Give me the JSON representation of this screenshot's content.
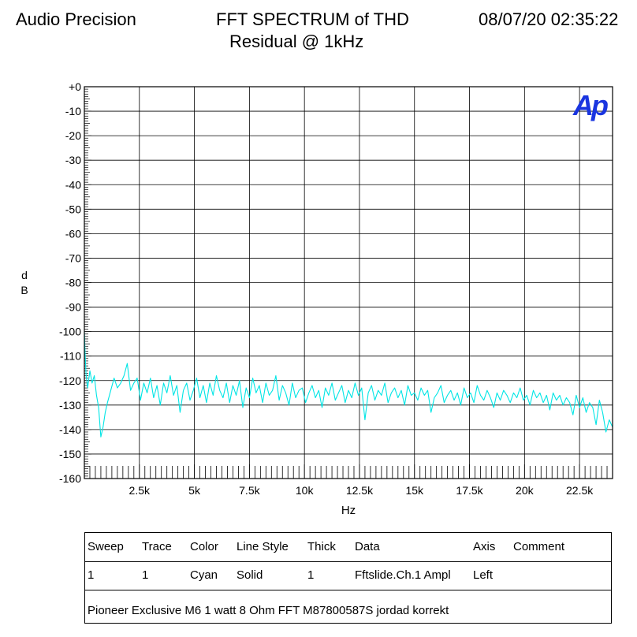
{
  "header": {
    "brand": "Audio Precision",
    "title_line1": "FFT SPECTRUM of THD",
    "title_line2": "Residual @ 1kHz",
    "timestamp": "08/07/20 02:35:22"
  },
  "logo": {
    "text": "Ap",
    "color": "#1a35e0"
  },
  "chart_data": {
    "type": "line",
    "title": "FFT SPECTRUM of THD Residual @ 1kHz",
    "xlabel": "Hz",
    "ylabel_chars": [
      "d",
      "B"
    ],
    "xlim": [
      0,
      24000
    ],
    "ylim": [
      -160,
      0
    ],
    "grid": true,
    "yticks": [
      {
        "value": 0,
        "label": "+0"
      },
      {
        "value": -10,
        "label": "-10"
      },
      {
        "value": -20,
        "label": "-20"
      },
      {
        "value": -30,
        "label": "-30"
      },
      {
        "value": -40,
        "label": "-40"
      },
      {
        "value": -50,
        "label": "-50"
      },
      {
        "value": -60,
        "label": "-60"
      },
      {
        "value": -70,
        "label": "-70"
      },
      {
        "value": -80,
        "label": "-80"
      },
      {
        "value": -90,
        "label": "-90"
      },
      {
        "value": -100,
        "label": "-100"
      },
      {
        "value": -110,
        "label": "-110"
      },
      {
        "value": -120,
        "label": "-120"
      },
      {
        "value": -130,
        "label": "-130"
      },
      {
        "value": -140,
        "label": "-140"
      },
      {
        "value": -150,
        "label": "-150"
      },
      {
        "value": -160,
        "label": "-160"
      }
    ],
    "xticks": [
      {
        "value": 2500,
        "label": "2.5k"
      },
      {
        "value": 5000,
        "label": "5k"
      },
      {
        "value": 7500,
        "label": "7.5k"
      },
      {
        "value": 10000,
        "label": "10k"
      },
      {
        "value": 12500,
        "label": "12.5k"
      },
      {
        "value": 15000,
        "label": "15k"
      },
      {
        "value": 17500,
        "label": "17.5k"
      },
      {
        "value": 20000,
        "label": "20k"
      },
      {
        "value": 22500,
        "label": "22.5k"
      }
    ],
    "series": [
      {
        "name": "Fftslide.Ch.1 Ampl",
        "color": "#00e5e5",
        "x": [
          0,
          40,
          80,
          150,
          250,
          350,
          450,
          550,
          650,
          750,
          850,
          950,
          1050,
          1200,
          1350,
          1500,
          1650,
          1800,
          1950,
          2100,
          2250,
          2400,
          2550,
          2700,
          2850,
          3000,
          3150,
          3300,
          3450,
          3600,
          3750,
          3900,
          4050,
          4200,
          4350,
          4500,
          4650,
          4800,
          4950,
          5100,
          5250,
          5400,
          5550,
          5700,
          5850,
          6000,
          6150,
          6300,
          6450,
          6600,
          6750,
          6900,
          7050,
          7200,
          7350,
          7500,
          7650,
          7800,
          7950,
          8100,
          8250,
          8400,
          8550,
          8700,
          8850,
          9000,
          9150,
          9300,
          9450,
          9600,
          9750,
          9900,
          10050,
          10200,
          10350,
          10500,
          10650,
          10800,
          10950,
          11100,
          11250,
          11400,
          11550,
          11700,
          11850,
          12000,
          12150,
          12300,
          12450,
          12600,
          12750,
          12900,
          13050,
          13200,
          13350,
          13500,
          13650,
          13800,
          13950,
          14100,
          14250,
          14400,
          14550,
          14700,
          14850,
          15000,
          15150,
          15300,
          15450,
          15600,
          15750,
          15900,
          16050,
          16200,
          16350,
          16500,
          16650,
          16800,
          16950,
          17100,
          17250,
          17400,
          17550,
          17700,
          17850,
          18000,
          18150,
          18300,
          18450,
          18600,
          18750,
          18900,
          19050,
          19200,
          19350,
          19500,
          19650,
          19800,
          19950,
          20100,
          20250,
          20400,
          20550,
          20700,
          20850,
          21000,
          21150,
          21300,
          21450,
          21600,
          21750,
          21900,
          22050,
          22200,
          22350,
          22500,
          22650,
          22800,
          22950,
          23100,
          23250,
          23400,
          23550,
          23700,
          23850,
          24000
        ],
        "values": [
          -100,
          -110,
          -118,
          -123,
          -116,
          -121,
          -118,
          -126,
          -131,
          -143,
          -139,
          -133,
          -129,
          -124,
          -119,
          -123,
          -121,
          -118,
          -113,
          -124,
          -121,
          -119,
          -128,
          -121,
          -125,
          -119,
          -127,
          -122,
          -130,
          -121,
          -125,
          -118,
          -126,
          -122,
          -133,
          -124,
          -121,
          -128,
          -124,
          -119,
          -127,
          -122,
          -129,
          -121,
          -126,
          -118,
          -124,
          -127,
          -121,
          -129,
          -122,
          -126,
          -120,
          -131,
          -123,
          -127,
          -119,
          -125,
          -122,
          -129,
          -121,
          -126,
          -124,
          -118,
          -128,
          -122,
          -125,
          -130,
          -121,
          -127,
          -124,
          -123,
          -129,
          -125,
          -122,
          -127,
          -124,
          -131,
          -123,
          -126,
          -121,
          -128,
          -125,
          -122,
          -129,
          -124,
          -127,
          -121,
          -126,
          -123,
          -136,
          -125,
          -122,
          -128,
          -124,
          -126,
          -121,
          -129,
          -125,
          -123,
          -127,
          -124,
          -130,
          -122,
          -126,
          -125,
          -128,
          -123,
          -126,
          -124,
          -133,
          -127,
          -125,
          -122,
          -129,
          -126,
          -124,
          -128,
          -125,
          -130,
          -123,
          -127,
          -125,
          -129,
          -122,
          -126,
          -128,
          -124,
          -127,
          -131,
          -125,
          -128,
          -124,
          -126,
          -129,
          -125,
          -127,
          -123,
          -128,
          -126,
          -130,
          -124,
          -127,
          -125,
          -129,
          -126,
          -132,
          -125,
          -128,
          -126,
          -130,
          -127,
          -129,
          -134,
          -126,
          -131,
          -127,
          -133,
          -129,
          -131,
          -138,
          -128,
          -133,
          -141,
          -136,
          -139
        ]
      }
    ]
  },
  "legend_table": {
    "headers": [
      "Sweep",
      "Trace",
      "Color",
      "Line Style",
      "Thick",
      "Data",
      "Axis",
      "Comment"
    ],
    "rows": [
      [
        "1",
        "1",
        "Cyan",
        "Solid",
        "1",
        "Fftslide.Ch.1 Ampl",
        "Left",
        ""
      ]
    ],
    "note": "Pioneer Exclusive M6 1 watt 8 Ohm FFT M87800587S jordad korrekt"
  }
}
